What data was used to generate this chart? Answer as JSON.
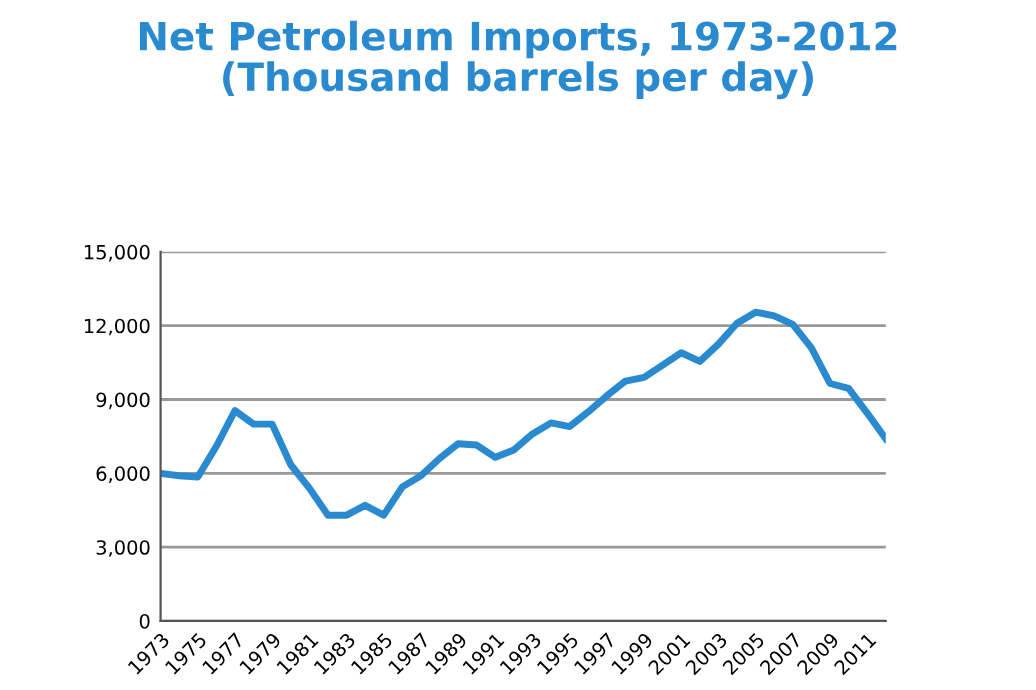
{
  "chart_data": {
    "type": "line",
    "title": "Net Petroleum Imports, 1973-2012\n(Thousand barrels per day)",
    "categories": [
      "1973",
      null,
      "1975",
      null,
      "1977",
      null,
      "1979",
      null,
      "1981",
      null,
      "1983",
      null,
      "1985",
      null,
      "1987",
      null,
      "1989",
      null,
      "1991",
      null,
      "1993",
      null,
      "1995",
      null,
      "1997",
      null,
      "1999",
      null,
      "2001",
      null,
      "2003",
      null,
      "2005",
      null,
      "2007",
      null,
      "2009",
      null,
      "2011",
      null
    ],
    "series": [
      {
        "color": "#2a8ad0",
        "values": [
          6000,
          5900,
          5850,
          7100,
          8550,
          8000,
          8000,
          6350,
          5400,
          4300,
          4300,
          4700,
          4300,
          5450,
          5900,
          6600,
          7200,
          7150,
          6650,
          6950,
          7600,
          8050,
          7900,
          8500,
          9150,
          9750,
          9900,
          10400,
          10900,
          10550,
          11250,
          12100,
          12550,
          12400,
          12050,
          11100,
          9650,
          9450,
          8450,
          7400
        ]
      }
    ],
    "ylim": [
      0,
      15000
    ],
    "yticks": [
      {
        "value": 0,
        "label": "0"
      },
      {
        "value": 3000,
        "label": "3,000"
      },
      {
        "value": 6000,
        "label": "6,000"
      },
      {
        "value": 9000,
        "label": "9,000"
      },
      {
        "value": 12000,
        "label": "12,000"
      },
      {
        "value": 15000,
        "label": "15,000"
      }
    ],
    "grid": "y",
    "legend": false,
    "marker": "none",
    "line_style": "solid"
  }
}
